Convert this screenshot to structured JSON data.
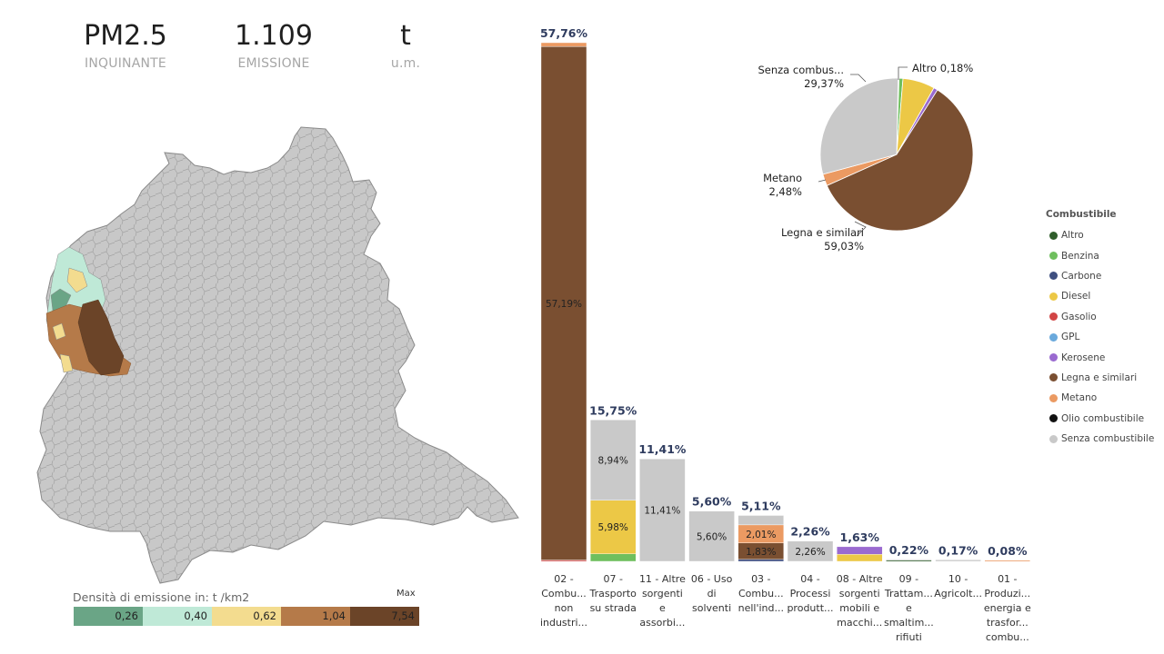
{
  "kpis": [
    {
      "value": "PM2.5",
      "label": "INQUINANTE"
    },
    {
      "value": "1.109",
      "label": "EMISSIONE"
    },
    {
      "value": "t",
      "label": "u.m."
    }
  ],
  "map_legend": {
    "title": "Densità di emissione in:  t /km2",
    "max_label": "Max",
    "segments": [
      {
        "label": "0,26",
        "color": "#6aa586"
      },
      {
        "label": "0,40",
        "color": "#bfe9d7"
      },
      {
        "label": "0,62",
        "color": "#f3dc8f"
      },
      {
        "label": "1,04",
        "color": "#b57a49"
      },
      {
        "label": "7,54",
        "color": "#6b4428"
      }
    ]
  },
  "colors": {
    "Altro": "#2f5d2b",
    "Benzina": "#6fbf5e",
    "Carbone": "#3f4f80",
    "Diesel": "#ecc846",
    "Gasolio": "#d24545",
    "GPL": "#6aa9dc",
    "Kerosene": "#9a6ad0",
    "Legna e similari": "#7a4f31",
    "Metano": "#eb9a62",
    "Olio combustibile": "#111111",
    "Senza combustibile": "#c9c9c9",
    "map_gray": "#c8c8c8",
    "top_label": "#2f3c5f"
  },
  "legend": {
    "title": "Combustibile",
    "items": [
      "Altro",
      "Benzina",
      "Carbone",
      "Diesel",
      "Gasolio",
      "GPL",
      "Kerosene",
      "Legna e similari",
      "Metano",
      "Olio combustibile",
      "Senza combustibile"
    ]
  },
  "chart_data": [
    {
      "type": "bar",
      "stacked": true,
      "ylim": [
        0,
        57.76
      ],
      "categories": [
        [
          "02 -",
          "Combu...",
          "non",
          "industri..."
        ],
        [
          "07 -",
          "Trasporto",
          "su strada"
        ],
        [
          "11 - Altre",
          "sorgenti",
          "e",
          "assorbi..."
        ],
        [
          "06 - Uso",
          "di",
          "solventi"
        ],
        [
          "03 -",
          "Combu...",
          "nell'ind..."
        ],
        [
          "04 -",
          "Processi",
          "produtt..."
        ],
        [
          "08 - Altre",
          "sorgenti",
          "mobili e",
          "macchi..."
        ],
        [
          "09 -",
          "Trattam...",
          "e",
          "smaltim...",
          "rifiuti"
        ],
        [
          "10 -",
          "Agricolt..."
        ],
        [
          "01 -",
          "Produzi...",
          "energia e",
          "trasfor...",
          "combu..."
        ]
      ],
      "totals": [
        "57,76%",
        "15,75%",
        "11,41%",
        "5,60%",
        "5,11%",
        "2,26%",
        "1,63%",
        "0,22%",
        "0,17%",
        "0,08%"
      ],
      "total_values": [
        57.76,
        15.75,
        11.41,
        5.6,
        5.11,
        2.26,
        1.63,
        0.22,
        0.17,
        0.08
      ],
      "stacks": [
        [
          {
            "fuel": "Gasolio",
            "value": 0.15
          },
          {
            "fuel": "Legna e similari",
            "value": 57.19,
            "label": "57,19%"
          },
          {
            "fuel": "Metano",
            "value": 0.42
          }
        ],
        [
          {
            "fuel": "Benzina",
            "value": 0.83
          },
          {
            "fuel": "Diesel",
            "value": 5.98,
            "label": "5,98%"
          },
          {
            "fuel": "Senza combustibile",
            "value": 8.94,
            "label": "8,94%"
          }
        ],
        [
          {
            "fuel": "Senza combustibile",
            "value": 11.41,
            "label": "11,41%"
          }
        ],
        [
          {
            "fuel": "Senza combustibile",
            "value": 5.6,
            "label": "5,60%"
          }
        ],
        [
          {
            "fuel": "Carbone",
            "value": 0.22
          },
          {
            "fuel": "Legna e similari",
            "value": 1.83,
            "label": "1,83%"
          },
          {
            "fuel": "Metano",
            "value": 2.01,
            "label": "2,01%"
          },
          {
            "fuel": "Senza combustibile",
            "value": 1.05
          }
        ],
        [
          {
            "fuel": "Senza combustibile",
            "value": 2.26,
            "label": "2,26%"
          }
        ],
        [
          {
            "fuel": "Diesel",
            "value": 0.78
          },
          {
            "fuel": "Kerosene",
            "value": 0.85
          }
        ],
        [
          {
            "fuel": "Altro",
            "value": 0.12
          },
          {
            "fuel": "Senza combustibile",
            "value": 0.1
          }
        ],
        [
          {
            "fuel": "Senza combustibile",
            "value": 0.17
          }
        ],
        [
          {
            "fuel": "Metano",
            "value": 0.08
          }
        ]
      ]
    },
    {
      "type": "pie",
      "slices": [
        {
          "name": "Altro",
          "value": 0.18,
          "label": "0,18%"
        },
        {
          "name": "Benzina",
          "value": 0.83
        },
        {
          "name": "Diesel",
          "value": 6.76
        },
        {
          "name": "Kerosene",
          "value": 0.85
        },
        {
          "name": "Legna e similari",
          "value": 59.03,
          "label": "59,03%"
        },
        {
          "name": "Metano",
          "value": 2.48,
          "label": "2,48%"
        },
        {
          "name": "Senza combustibile",
          "value": 29.37,
          "label": "29,37%"
        }
      ],
      "callouts": [
        {
          "lines": [
            "Altro 0,18%"
          ]
        },
        {
          "lines": [
            "Senza combus...",
            "29,37%"
          ]
        },
        {
          "lines": [
            "Metano",
            "2,48%"
          ]
        },
        {
          "lines": [
            "Legna e similari",
            "59,03%"
          ]
        }
      ]
    }
  ]
}
